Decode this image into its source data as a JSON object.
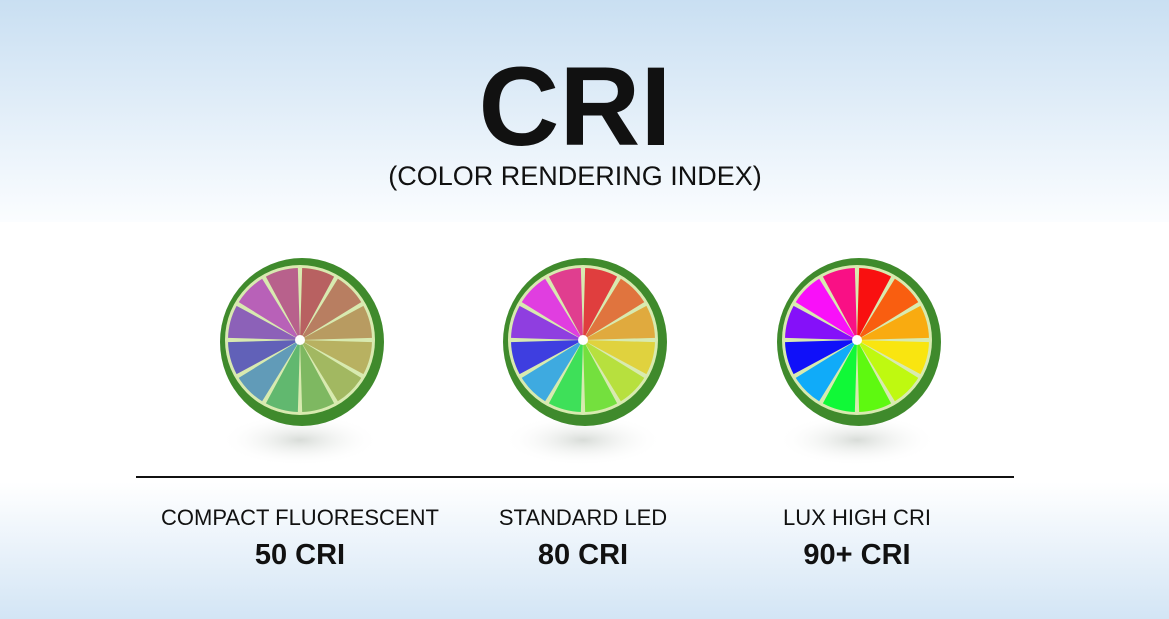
{
  "header": {
    "title": "CRI",
    "subtitle": "(COLOR RENDERING INDEX)"
  },
  "items": [
    {
      "label": "COMPACT FLUORESCENT",
      "value": "50 CRI"
    },
    {
      "label": "STANDARD LED",
      "value": "80 CRI"
    },
    {
      "label": "LUX HIGH CRI",
      "value": "90+ CRI"
    }
  ]
}
